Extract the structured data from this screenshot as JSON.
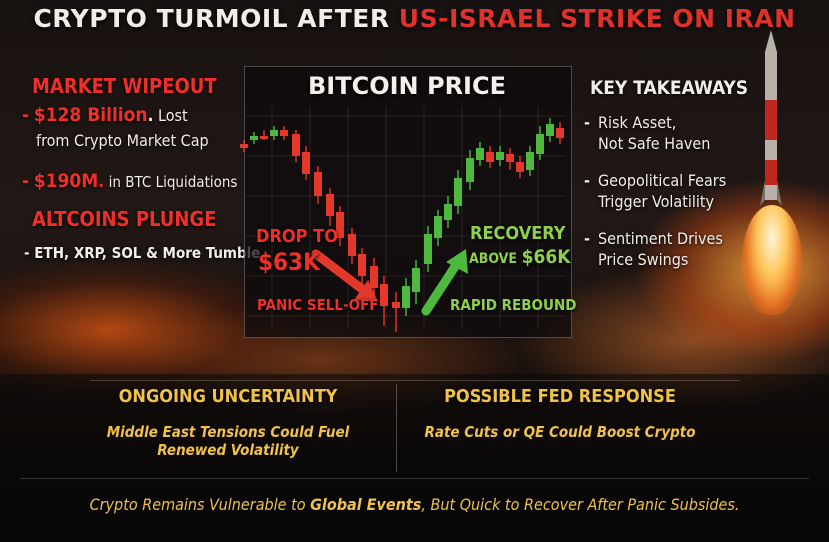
{
  "title": {
    "part1": "CRYPTO TURMOIL AFTER ",
    "part2": "US-ISRAEL STRIKE ON IRAN"
  },
  "left": {
    "wipeout_header": "MARKET WIPEOUT",
    "item1_dash": "-",
    "item1_amount": "$128 Billion",
    "item1_rest": "Lost",
    "item1_sub": "from Crypto Market Cap",
    "item2_dash": "-",
    "item2_amount": "$190M",
    "item2_rest": "in BTC Liquidations",
    "altcoins_header": "ALTCOINS PLUNGE",
    "altcoins_text": "- ETH, XRP, SOL & More Tumble"
  },
  "chart": {
    "title": "BITCOIN PRICE",
    "drop_line1": "DROP TO",
    "drop_line2": "$63K",
    "panic_label": "PANIC SELL-OFF",
    "recovery_line1": "RECOVERY",
    "recovery_line2_a": "ABOVE",
    "recovery_line2_b": "$66K",
    "rebound_label": "RAPID REBOUND"
  },
  "chart_data": {
    "type": "candlestick",
    "title": "BITCOIN PRICE",
    "colors": {
      "up": "#4fb83f",
      "down": "#e4382a"
    }
  },
  "right": {
    "header": "KEY TAKEAWAYS",
    "items": [
      {
        "dash": "-",
        "line1": "Risk Asset,",
        "line2": "Not Safe Haven"
      },
      {
        "dash": "-",
        "line1": "Geopolitical Fears",
        "line2": "Trigger Volatility"
      },
      {
        "dash": "-",
        "line1": "Sentiment Drives",
        "line2": "Price Swings"
      }
    ]
  },
  "bottom": {
    "left_header": "ONGOING UNCERTAINTY",
    "left_line1": "Middle East Tensions Could Fuel",
    "left_line2": "Renewed Volatility",
    "right_header": "POSSIBLE FED RESPONSE",
    "right_line1": "Rate Cuts or QE Could Boost Crypto",
    "footer_a": "Crypto Remains Vulnerable to ",
    "footer_b": "Global Events",
    "footer_c": ", But Quick to Recover After Panic Subsides."
  },
  "colors": {
    "accent_red": "#ef2f28",
    "accent_yellow": "#f1c24a",
    "accent_green": "#8fd04a"
  }
}
